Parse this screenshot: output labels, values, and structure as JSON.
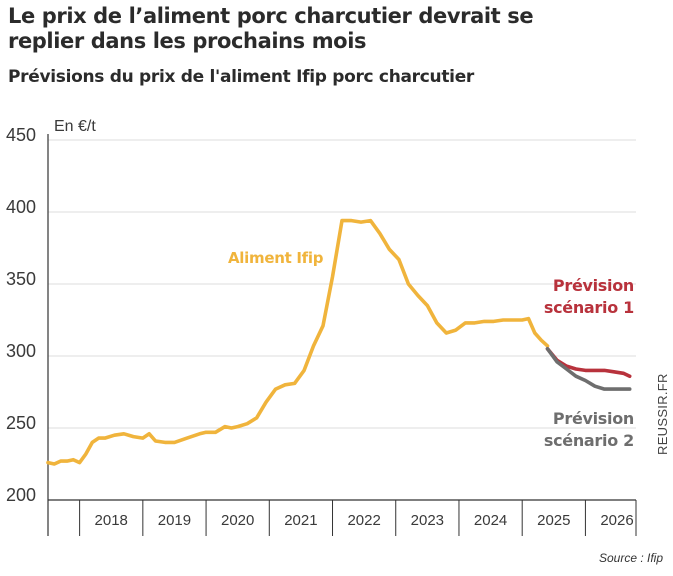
{
  "header": {
    "title": "Le prix de l’aliment porc charcutier devrait se replier dans les prochains mois",
    "subtitle": "Prévisions du prix de l'aliment Ifip porc charcutier"
  },
  "footer": {
    "source": "Source : Ifip",
    "watermark": "REUSSIR.FR"
  },
  "chart_data": {
    "type": "line",
    "title": "Prévisions du prix de l'aliment Ifip porc charcutier",
    "ylabel": "En €/t",
    "xlabel": "",
    "ylim": [
      200,
      450
    ],
    "xlim": [
      2017.5,
      2026.8
    ],
    "yticks": [
      200,
      250,
      300,
      350,
      400,
      450
    ],
    "xticks": [
      "2018",
      "2019",
      "2020",
      "2021",
      "2022",
      "2023",
      "2024",
      "2025",
      "2026"
    ],
    "grid": "horizontal",
    "colors": {
      "aliment": "#f0b43c",
      "scenario1": "#b8323c",
      "scenario2": "#6e6e6e",
      "grid": "#dcdcdc",
      "axis": "#333333"
    },
    "series": [
      {
        "name": "Aliment Ifip",
        "color": "#f0b43c",
        "x": [
          2017.5,
          2017.6,
          2017.7,
          2017.8,
          2017.9,
          2018.0,
          2018.1,
          2018.2,
          2018.3,
          2018.4,
          2018.55,
          2018.7,
          2018.85,
          2019.0,
          2019.1,
          2019.2,
          2019.35,
          2019.5,
          2019.7,
          2019.9,
          2020.0,
          2020.15,
          2020.3,
          2020.4,
          2020.5,
          2020.65,
          2020.8,
          2020.95,
          2021.1,
          2021.25,
          2021.4,
          2021.55,
          2021.7,
          2021.85,
          2022.0,
          2022.15,
          2022.3,
          2022.45,
          2022.6,
          2022.75,
          2022.9,
          2023.05,
          2023.2,
          2023.35,
          2023.5,
          2023.65,
          2023.8,
          2023.95,
          2024.1,
          2024.25,
          2024.4,
          2024.55,
          2024.7,
          2024.85,
          2025.0,
          2025.1,
          2025.2,
          2025.3,
          2025.4
        ],
        "values": [
          226,
          225,
          227,
          227,
          228,
          226,
          232,
          240,
          243,
          243,
          245,
          246,
          244,
          243,
          246,
          241,
          240,
          240,
          243,
          246,
          247,
          247,
          251,
          250,
          251,
          253,
          257,
          268,
          277,
          280,
          281,
          290,
          307,
          321,
          355,
          394,
          394,
          393,
          394,
          385,
          374,
          367,
          350,
          342,
          335,
          323,
          316,
          318,
          323,
          323,
          324,
          324,
          325,
          325,
          325,
          326,
          316,
          311,
          307
        ]
      },
      {
        "name": "Prévision scénario 1",
        "color": "#b8323c",
        "x": [
          2025.4,
          2025.55,
          2025.7,
          2025.85,
          2026.0,
          2026.15,
          2026.3,
          2026.45,
          2026.6,
          2026.7
        ],
        "values": [
          305,
          297,
          293,
          291,
          290,
          290,
          290,
          289,
          288,
          286
        ]
      },
      {
        "name": "Prévision scénario 2",
        "color": "#6e6e6e",
        "x": [
          2025.4,
          2025.55,
          2025.7,
          2025.85,
          2026.0,
          2026.15,
          2026.3,
          2026.45,
          2026.6,
          2026.7
        ],
        "values": [
          305,
          296,
          291,
          286,
          283,
          279,
          277,
          277,
          277,
          277
        ]
      }
    ],
    "annotations": {
      "aliment": "Aliment Ifip",
      "scenario1": [
        "Prévision",
        "scénario 1"
      ],
      "scenario2": [
        "Prévision",
        "scénario 2"
      ]
    }
  }
}
